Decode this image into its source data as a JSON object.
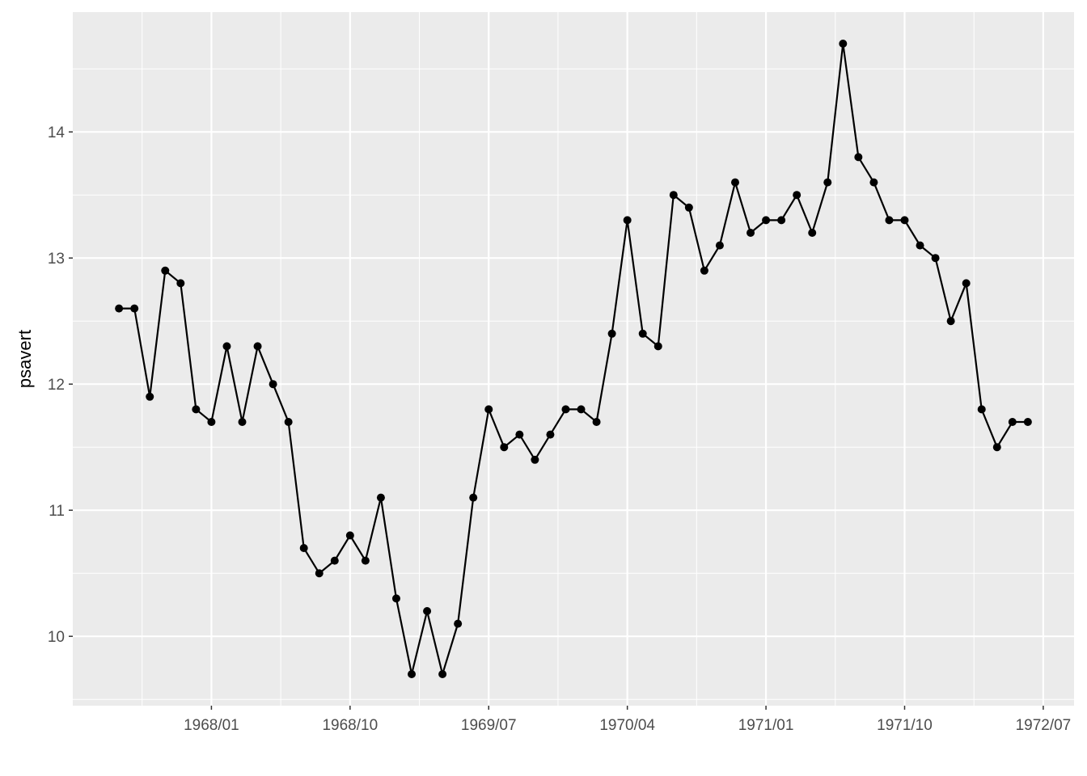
{
  "chart_data": {
    "type": "line",
    "y_label": "psavert",
    "x": [
      "1967-07",
      "1967-08",
      "1967-09",
      "1967-10",
      "1967-11",
      "1967-12",
      "1968-01",
      "1968-02",
      "1968-03",
      "1968-04",
      "1968-05",
      "1968-06",
      "1968-07",
      "1968-08",
      "1968-09",
      "1968-10",
      "1968-11",
      "1968-12",
      "1969-01",
      "1969-02",
      "1969-03",
      "1969-04",
      "1969-05",
      "1969-06",
      "1969-07",
      "1969-08",
      "1969-09",
      "1969-10",
      "1969-11",
      "1969-12",
      "1970-01",
      "1970-02",
      "1970-03",
      "1970-04",
      "1970-05",
      "1970-06",
      "1970-07",
      "1970-08",
      "1970-09",
      "1970-10",
      "1970-11",
      "1970-12",
      "1971-01",
      "1971-02",
      "1971-03",
      "1971-04",
      "1971-05",
      "1971-06",
      "1971-07",
      "1971-08",
      "1971-09",
      "1971-10",
      "1971-11",
      "1971-12",
      "1972-01",
      "1972-02",
      "1972-03",
      "1972-04",
      "1972-05",
      "1972-06"
    ],
    "series": [
      {
        "name": "psavert",
        "color": "#000000",
        "values": [
          12.6,
          12.6,
          11.9,
          12.9,
          12.8,
          11.8,
          11.7,
          12.3,
          11.7,
          12.3,
          12.0,
          11.7,
          10.7,
          10.5,
          10.6,
          10.8,
          10.6,
          11.1,
          10.3,
          9.7,
          10.2,
          9.7,
          10.1,
          11.1,
          11.8,
          11.5,
          11.6,
          11.4,
          11.6,
          11.8,
          11.8,
          11.7,
          12.4,
          13.3,
          12.4,
          12.3,
          13.5,
          13.4,
          12.9,
          13.1,
          13.6,
          13.2,
          13.3,
          13.3,
          13.5,
          13.2,
          13.6,
          14.7,
          13.8,
          13.6,
          13.3,
          13.3,
          13.1,
          13.0,
          12.5,
          12.8,
          11.8,
          11.5,
          11.7,
          11.7
        ]
      }
    ],
    "xlim": [
      "1967-04",
      "1972-09"
    ],
    "xticks": [
      {
        "value": "1968-01",
        "label": "1968/01"
      },
      {
        "value": "1968-10",
        "label": "1968/10"
      },
      {
        "value": "1969-07",
        "label": "1969/07"
      },
      {
        "value": "1970-04",
        "label": "1970/04"
      },
      {
        "value": "1971-01",
        "label": "1971/01"
      },
      {
        "value": "1971-10",
        "label": "1971/10"
      },
      {
        "value": "1972-07",
        "label": "1972/07"
      }
    ],
    "ylim": [
      9.45,
      14.95
    ],
    "yticks": [
      10,
      11,
      12,
      13,
      14
    ],
    "grid": true
  }
}
